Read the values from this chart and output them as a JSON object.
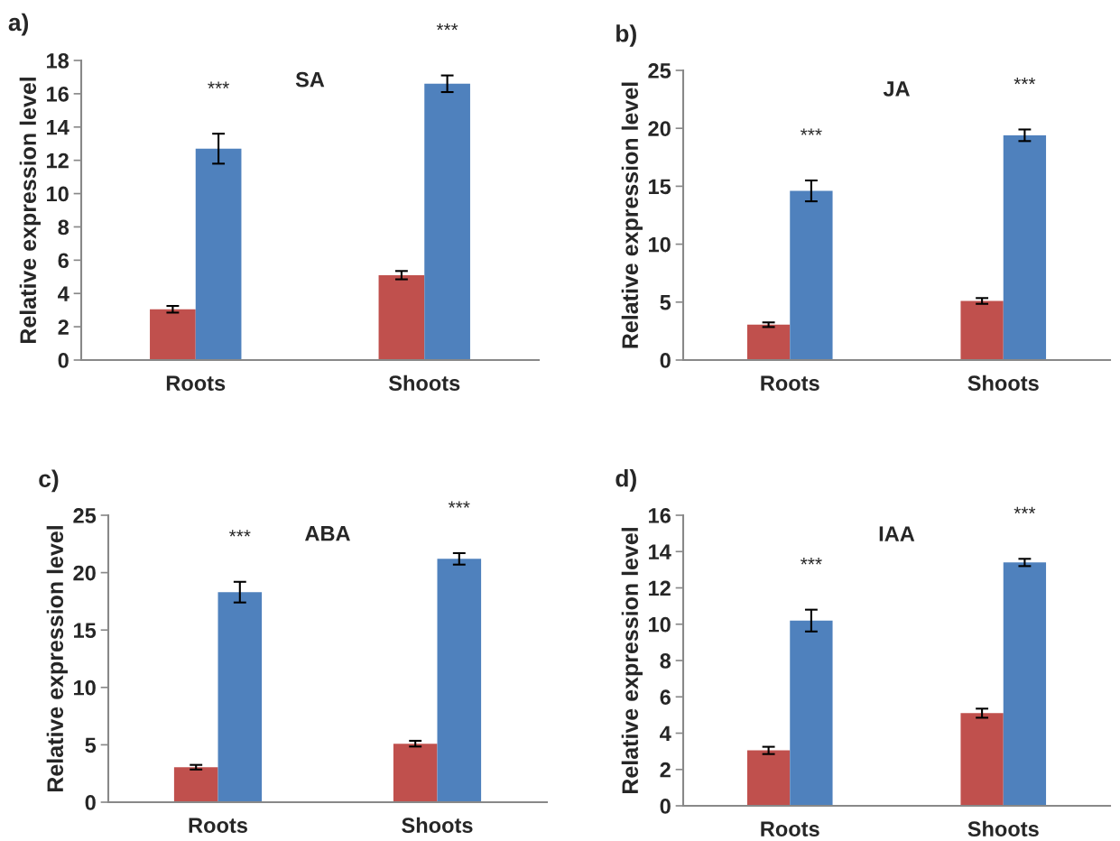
{
  "chart_data": [
    {
      "type": "bar",
      "title": "SA",
      "ylabel": "Relative expression level",
      "categories": [
        "Roots",
        "Shoots"
      ],
      "ylim": [
        0,
        18
      ],
      "yticks": [
        0,
        2,
        4,
        6,
        8,
        10,
        12,
        14,
        16,
        18
      ],
      "grid": false,
      "legend": false,
      "series": [
        {
          "color": "#c0504d",
          "values": [
            3.05,
            5.1
          ],
          "errors": [
            0.2,
            0.25
          ]
        },
        {
          "color": "#4f81bd",
          "values": [
            12.7,
            16.6
          ],
          "errors": [
            0.9,
            0.5
          ]
        }
      ],
      "annotations": [
        "a)",
        "***",
        "***"
      ]
    },
    {
      "type": "bar",
      "title": "JA",
      "ylabel": "Relative expression level",
      "categories": [
        "Roots",
        "Shoots"
      ],
      "ylim": [
        0,
        25
      ],
      "yticks": [
        0,
        5,
        10,
        15,
        20,
        25
      ],
      "grid": false,
      "legend": false,
      "series": [
        {
          "color": "#c0504d",
          "values": [
            3.05,
            5.1
          ],
          "errors": [
            0.2,
            0.25
          ]
        },
        {
          "color": "#4f81bd",
          "values": [
            14.6,
            19.4
          ],
          "errors": [
            0.9,
            0.5
          ]
        }
      ],
      "annotations": [
        "b)",
        "***",
        "***"
      ]
    },
    {
      "type": "bar",
      "title": "ABA",
      "ylabel": "Relative expression level",
      "categories": [
        "Roots",
        "Shoots"
      ],
      "ylim": [
        0,
        25
      ],
      "yticks": [
        0,
        5,
        10,
        15,
        20,
        25
      ],
      "grid": false,
      "legend": false,
      "series": [
        {
          "color": "#c0504d",
          "values": [
            3.05,
            5.1
          ],
          "errors": [
            0.2,
            0.25
          ]
        },
        {
          "color": "#4f81bd",
          "values": [
            18.3,
            21.2
          ],
          "errors": [
            0.9,
            0.5
          ]
        }
      ],
      "annotations": [
        "c)",
        "***",
        "***"
      ]
    },
    {
      "type": "bar",
      "title": "IAA",
      "ylabel": "Relative expression level",
      "categories": [
        "Roots",
        "Shoots"
      ],
      "ylim": [
        0,
        16
      ],
      "yticks": [
        0,
        2,
        4,
        6,
        8,
        10,
        12,
        14,
        16
      ],
      "grid": false,
      "legend": false,
      "series": [
        {
          "color": "#c0504d",
          "values": [
            3.05,
            5.1
          ],
          "errors": [
            0.2,
            0.25
          ]
        },
        {
          "color": "#4f81bd",
          "values": [
            10.2,
            13.4
          ],
          "errors": [
            0.6,
            0.2
          ]
        }
      ],
      "annotations": [
        "d)",
        "***",
        "***"
      ]
    }
  ]
}
